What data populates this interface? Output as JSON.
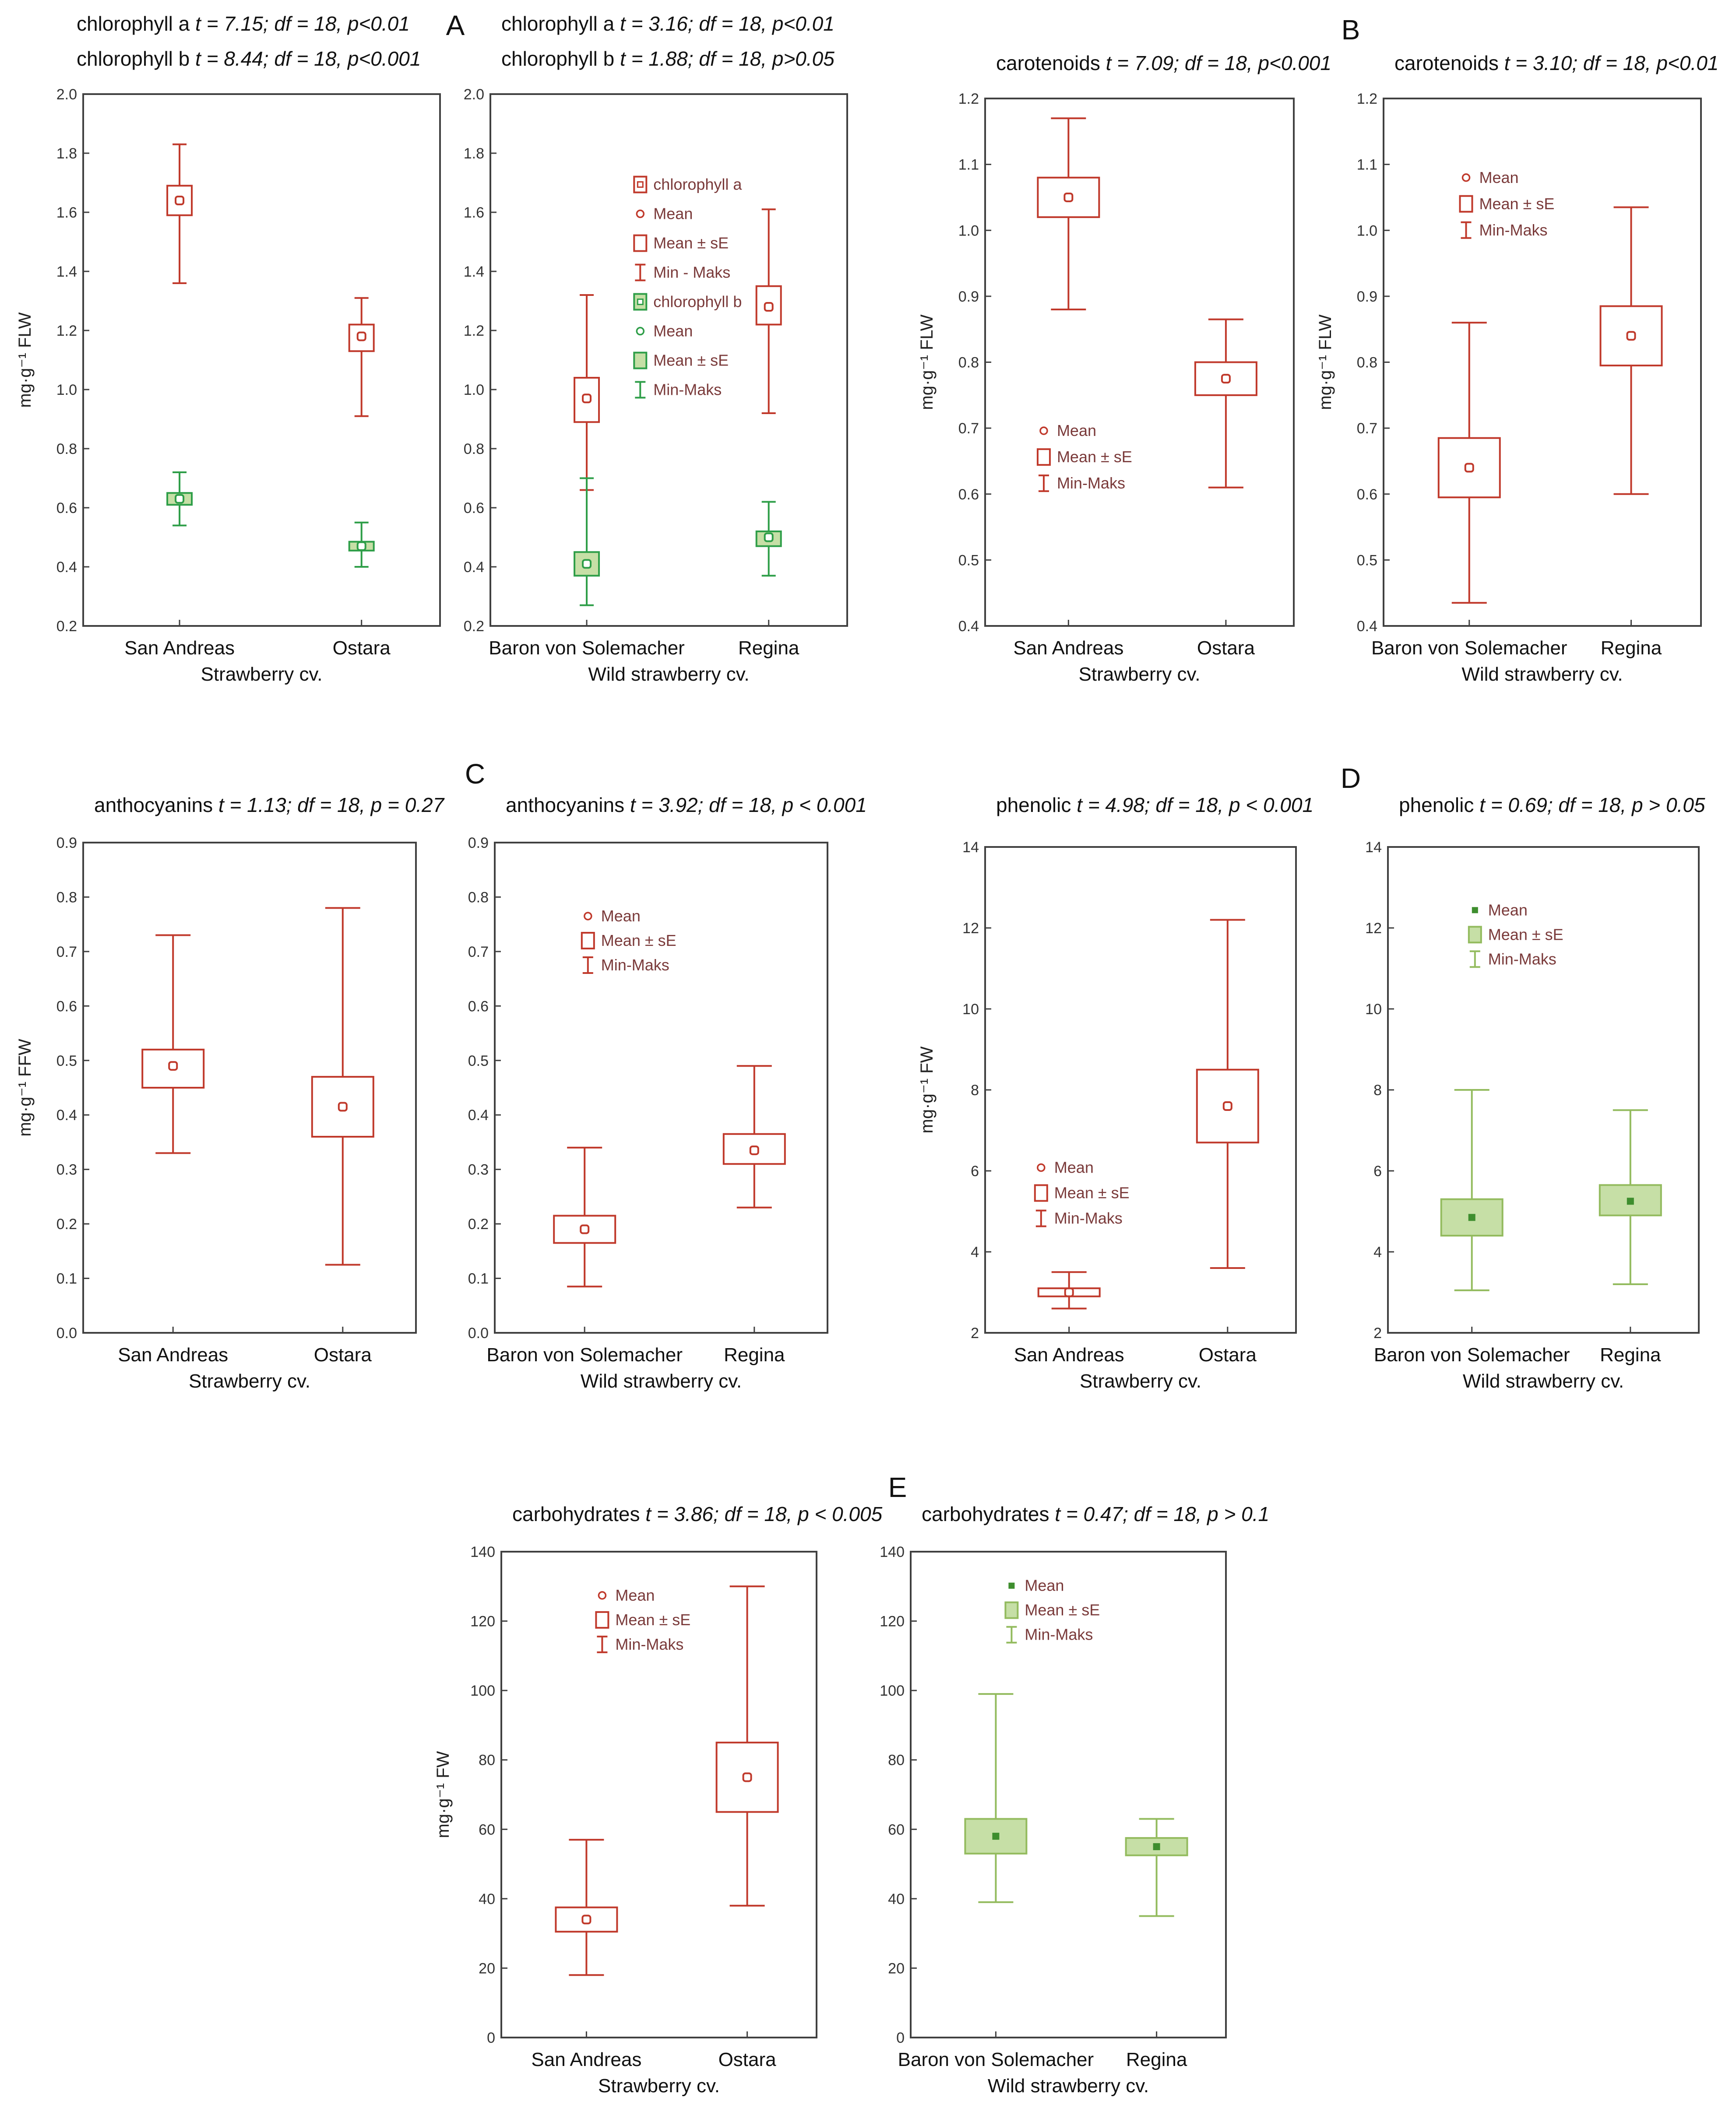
{
  "colors": {
    "red": "#c0392b",
    "dark_green": "#2e9e48",
    "light_green": "#93bb5e",
    "fill_green": "#c6dfa6",
    "frame": "#404040",
    "legend_text": "#7a3a3a"
  },
  "panel_letters": [
    "A",
    "B",
    "C",
    "D",
    "E"
  ],
  "chart_data": [
    {
      "id": "A-left",
      "type": "boxplot",
      "panel": "A",
      "header_lines": [
        {
          "metric": "chlorophyll a",
          "stat": "t = 7.15; df = 18, p<0.01"
        },
        {
          "metric": "chlorophyll b",
          "stat": "t = 8.44; df = 18, p<0.001"
        }
      ],
      "ylabel": "mg·g⁻¹ FLW",
      "xlabel": "Strawberry cv.",
      "categories": [
        "San Andreas",
        "Ostara"
      ],
      "ylim": [
        0.2,
        2.0
      ],
      "yticks": [
        "0.2",
        "0.4",
        "0.6",
        "0.8",
        "1.0",
        "1.2",
        "1.4",
        "1.6",
        "1.8",
        "2.0"
      ],
      "legend": null,
      "series": [
        {
          "name": "chlorophyll a",
          "style": "red",
          "boxes": [
            {
              "category": "San Andreas",
              "mean": 1.64,
              "box_low": 1.59,
              "box_high": 1.69,
              "min": 1.36,
              "max": 1.83
            },
            {
              "category": "Ostara",
              "mean": 1.18,
              "box_low": 1.13,
              "box_high": 1.22,
              "min": 0.91,
              "max": 1.31
            }
          ]
        },
        {
          "name": "chlorophyll b",
          "style": "darkgreen",
          "boxes": [
            {
              "category": "San Andreas",
              "mean": 0.63,
              "box_low": 0.61,
              "box_high": 0.65,
              "min": 0.54,
              "max": 0.72
            },
            {
              "category": "Ostara",
              "mean": 0.47,
              "box_low": 0.455,
              "box_high": 0.485,
              "min": 0.4,
              "max": 0.55
            }
          ]
        }
      ]
    },
    {
      "id": "A-right",
      "type": "boxplot",
      "panel": "A",
      "header_lines": [
        {
          "metric": "chlorophyll a",
          "stat": "t = 3.16; df = 18, p<0.01"
        },
        {
          "metric": "chlorophyll b",
          "stat": "t = 1.88; df = 18, p>0.05"
        }
      ],
      "ylabel": "",
      "xlabel": "Wild strawberry cv.",
      "categories": [
        "Baron von Solemacher",
        "Regina"
      ],
      "ylim": [
        0.2,
        2.0
      ],
      "yticks": [
        "0.2",
        "0.4",
        "0.6",
        "0.8",
        "1.0",
        "1.2",
        "1.4",
        "1.6",
        "1.8",
        "2.0"
      ],
      "legend": {
        "entries": [
          {
            "glyph": "box-dot-red",
            "label": "chlorophyll a"
          },
          {
            "glyph": "dot-red",
            "label": "Mean"
          },
          {
            "glyph": "box-red",
            "label": "Mean ± sE"
          },
          {
            "glyph": "whisker-red",
            "label": "Min - Maks"
          },
          {
            "glyph": "box-dot-darkgreen",
            "label": "chlorophyll b"
          },
          {
            "glyph": "dot-darkgreen",
            "label": "Mean"
          },
          {
            "glyph": "box-darkgreen",
            "label": "Mean ± sE"
          },
          {
            "glyph": "whisker-darkgreen",
            "label": "Min-Maks"
          }
        ]
      },
      "series": [
        {
          "name": "chlorophyll a",
          "style": "red",
          "boxes": [
            {
              "category": "Baron von Solemacher",
              "mean": 0.97,
              "box_low": 0.89,
              "box_high": 1.04,
              "min": 0.66,
              "max": 1.32
            },
            {
              "category": "Regina",
              "mean": 1.28,
              "box_low": 1.22,
              "box_high": 1.35,
              "min": 0.92,
              "max": 1.61
            }
          ]
        },
        {
          "name": "chlorophyll b",
          "style": "darkgreen",
          "boxes": [
            {
              "category": "Baron von Solemacher",
              "mean": 0.41,
              "box_low": 0.37,
              "box_high": 0.45,
              "min": 0.27,
              "max": 0.7
            },
            {
              "category": "Regina",
              "mean": 0.5,
              "box_low": 0.47,
              "box_high": 0.52,
              "min": 0.37,
              "max": 0.62
            }
          ]
        }
      ]
    },
    {
      "id": "B-left",
      "type": "boxplot",
      "panel": "B",
      "header_lines": [
        {
          "metric": "carotenoids",
          "stat": "t = 7.09; df = 18, p<0.001"
        }
      ],
      "ylabel": "mg·g⁻¹ FLW",
      "xlabel": "Strawberry cv.",
      "categories": [
        "San Andreas",
        "Ostara"
      ],
      "ylim": [
        0.4,
        1.2
      ],
      "yticks": [
        "0.4",
        "0.5",
        "0.6",
        "0.7",
        "0.8",
        "0.9",
        "1.0",
        "1.1",
        "1.2"
      ],
      "legend": {
        "entries": [
          {
            "glyph": "dot-red",
            "label": "Mean"
          },
          {
            "glyph": "box-red",
            "label": "Mean ± sE"
          },
          {
            "glyph": "whisker-red",
            "label": "Min-Maks"
          }
        ]
      },
      "series": [
        {
          "name": "carotenoids",
          "style": "red",
          "boxes": [
            {
              "category": "San Andreas",
              "mean": 1.05,
              "box_low": 1.02,
              "box_high": 1.08,
              "min": 0.88,
              "max": 1.17
            },
            {
              "category": "Ostara",
              "mean": 0.775,
              "box_low": 0.75,
              "box_high": 0.8,
              "min": 0.61,
              "max": 0.865
            }
          ]
        }
      ]
    },
    {
      "id": "B-right",
      "type": "boxplot",
      "panel": "B",
      "header_lines": [
        {
          "metric": "carotenoids",
          "stat": "t = 3.10; df = 18, p<0.01"
        }
      ],
      "ylabel": "mg·g⁻¹ FLW",
      "xlabel": "Wild strawberry cv.",
      "categories": [
        "Baron von Solemacher",
        "Regina"
      ],
      "ylim": [
        0.4,
        1.2
      ],
      "yticks": [
        "0.4",
        "0.5",
        "0.6",
        "0.7",
        "0.8",
        "0.9",
        "1.0",
        "1.1",
        "1.2"
      ],
      "legend": {
        "entries": [
          {
            "glyph": "dot-red",
            "label": "Mean"
          },
          {
            "glyph": "box-red",
            "label": "Mean ± sE"
          },
          {
            "glyph": "whisker-red",
            "label": "Min-Maks"
          }
        ]
      },
      "series": [
        {
          "name": "carotenoids",
          "style": "red",
          "boxes": [
            {
              "category": "Baron von Solemacher",
              "mean": 0.64,
              "box_low": 0.595,
              "box_high": 0.685,
              "min": 0.435,
              "max": 0.86
            },
            {
              "category": "Regina",
              "mean": 0.84,
              "box_low": 0.795,
              "box_high": 0.885,
              "min": 0.6,
              "max": 1.035
            }
          ]
        }
      ]
    },
    {
      "id": "C-left",
      "type": "boxplot",
      "panel": "C",
      "header_lines": [
        {
          "metric": "anthocyanins",
          "stat": "t = 1.13; df = 18, p = 0.27"
        }
      ],
      "ylabel": "mg·g⁻¹ FFW",
      "xlabel": "Strawberry cv.",
      "categories": [
        "San Andreas",
        "Ostara"
      ],
      "ylim": [
        0.0,
        0.9
      ],
      "yticks": [
        "0.0",
        "0.1",
        "0.2",
        "0.3",
        "0.4",
        "0.5",
        "0.6",
        "0.7",
        "0.8",
        "0.9"
      ],
      "legend": null,
      "series": [
        {
          "name": "anthocyanins",
          "style": "red",
          "boxes": [
            {
              "category": "San Andreas",
              "mean": 0.49,
              "box_low": 0.45,
              "box_high": 0.52,
              "min": 0.33,
              "max": 0.73
            },
            {
              "category": "Ostara",
              "mean": 0.415,
              "box_low": 0.36,
              "box_high": 0.47,
              "min": 0.125,
              "max": 0.78
            }
          ]
        }
      ]
    },
    {
      "id": "C-right",
      "type": "boxplot",
      "panel": "C",
      "header_lines": [
        {
          "metric": "anthocyanins",
          "stat": "t = 3.92; df = 18, p < 0.001"
        }
      ],
      "ylabel": "",
      "xlabel": "Wild strawberry cv.",
      "categories": [
        "Baron von Solemacher",
        "Regina"
      ],
      "ylim": [
        0.0,
        0.9
      ],
      "yticks": [
        "0.0",
        "0.1",
        "0.2",
        "0.3",
        "0.4",
        "0.5",
        "0.6",
        "0.7",
        "0.8",
        "0.9"
      ],
      "legend": {
        "entries": [
          {
            "glyph": "dot-red",
            "label": "Mean"
          },
          {
            "glyph": "box-red",
            "label": "Mean ± sE"
          },
          {
            "glyph": "whisker-red",
            "label": "Min-Maks"
          }
        ]
      },
      "series": [
        {
          "name": "anthocyanins",
          "style": "red",
          "boxes": [
            {
              "category": "Baron von Solemacher",
              "mean": 0.19,
              "box_low": 0.165,
              "box_high": 0.215,
              "min": 0.085,
              "max": 0.34
            },
            {
              "category": "Regina",
              "mean": 0.335,
              "box_low": 0.31,
              "box_high": 0.365,
              "min": 0.23,
              "max": 0.49
            }
          ]
        }
      ]
    },
    {
      "id": "D-left",
      "type": "boxplot",
      "panel": "D",
      "header_lines": [
        {
          "metric": "phenolic",
          "stat": "t = 4.98; df = 18, p < 0.001"
        }
      ],
      "ylabel": "mg·g⁻¹ FW",
      "xlabel": "Strawberry cv.",
      "categories": [
        "San Andreas",
        "Ostara"
      ],
      "ylim": [
        2,
        14
      ],
      "yticks": [
        "2",
        "4",
        "6",
        "8",
        "10",
        "12",
        "14"
      ],
      "legend": {
        "entries": [
          {
            "glyph": "dot-red",
            "label": "Mean"
          },
          {
            "glyph": "box-red",
            "label": "Mean ± sE"
          },
          {
            "glyph": "whisker-red",
            "label": "Min-Maks"
          }
        ]
      },
      "series": [
        {
          "name": "phenolic",
          "style": "red",
          "boxes": [
            {
              "category": "San Andreas",
              "mean": 3.0,
              "box_low": 2.9,
              "box_high": 3.1,
              "min": 2.6,
              "max": 3.5
            },
            {
              "category": "Ostara",
              "mean": 7.6,
              "box_low": 6.7,
              "box_high": 8.5,
              "min": 3.6,
              "max": 12.2
            }
          ]
        }
      ]
    },
    {
      "id": "D-right",
      "type": "boxplot",
      "panel": "D",
      "header_lines": [
        {
          "metric": "phenolic",
          "stat": "t = 0.69; df = 18, p > 0.05"
        }
      ],
      "ylabel": "",
      "xlabel": "Wild strawberry cv.",
      "categories": [
        "Baron von Solemacher",
        "Regina"
      ],
      "ylim": [
        2,
        14
      ],
      "yticks": [
        "2",
        "4",
        "6",
        "8",
        "10",
        "12",
        "14"
      ],
      "legend": {
        "entries": [
          {
            "glyph": "dot-green",
            "label": "Mean"
          },
          {
            "glyph": "box-green",
            "label": "Mean ± sE"
          },
          {
            "glyph": "whisker-green",
            "label": "Min-Maks"
          }
        ]
      },
      "series": [
        {
          "name": "phenolic",
          "style": "green",
          "boxes": [
            {
              "category": "Baron von Solemacher",
              "mean": 4.85,
              "box_low": 4.4,
              "box_high": 5.3,
              "min": 3.05,
              "max": 8.0
            },
            {
              "category": "Regina",
              "mean": 5.25,
              "box_low": 4.9,
              "box_high": 5.65,
              "min": 3.2,
              "max": 7.5
            }
          ]
        }
      ]
    },
    {
      "id": "E-left",
      "type": "boxplot",
      "panel": "E",
      "header_lines": [
        {
          "metric": "carbohydrates",
          "stat": "t = 3.86; df = 18, p < 0.005"
        }
      ],
      "ylabel": "mg·g⁻¹ FW",
      "xlabel": "Strawberry cv.",
      "categories": [
        "San Andreas",
        "Ostara"
      ],
      "ylim": [
        0,
        140
      ],
      "yticks": [
        "0",
        "20",
        "40",
        "60",
        "80",
        "100",
        "120",
        "140"
      ],
      "legend": {
        "entries": [
          {
            "glyph": "dot-red",
            "label": "Mean"
          },
          {
            "glyph": "box-red",
            "label": "Mean ± sE"
          },
          {
            "glyph": "whisker-red",
            "label": "Min-Maks"
          }
        ]
      },
      "series": [
        {
          "name": "carbohydrates",
          "style": "red",
          "boxes": [
            {
              "category": "San Andreas",
              "mean": 34,
              "box_low": 30.5,
              "box_high": 37.5,
              "min": 18,
              "max": 57
            },
            {
              "category": "Ostara",
              "mean": 75,
              "box_low": 65,
              "box_high": 85,
              "min": 38,
              "max": 130
            }
          ]
        }
      ]
    },
    {
      "id": "E-right",
      "type": "boxplot",
      "panel": "E",
      "header_lines": [
        {
          "metric": "carbohydrates",
          "stat": "t = 0.47; df = 18, p > 0.1"
        }
      ],
      "ylabel": "",
      "xlabel": "Wild strawberry cv.",
      "categories": [
        "Baron von Solemacher",
        "Regina"
      ],
      "ylim": [
        0,
        140
      ],
      "yticks": [
        "0",
        "20",
        "40",
        "60",
        "80",
        "100",
        "120",
        "140"
      ],
      "legend": {
        "entries": [
          {
            "glyph": "dot-green",
            "label": "Mean"
          },
          {
            "glyph": "box-green",
            "label": "Mean ± sE"
          },
          {
            "glyph": "whisker-green",
            "label": "Min-Maks"
          }
        ]
      },
      "series": [
        {
          "name": "carbohydrates",
          "style": "green",
          "boxes": [
            {
              "category": "Baron von Solemacher",
              "mean": 58,
              "box_low": 53,
              "box_high": 63,
              "min": 39,
              "max": 99
            },
            {
              "category": "Regina",
              "mean": 55,
              "box_low": 52.5,
              "box_high": 57.5,
              "min": 35,
              "max": 63
            }
          ]
        }
      ]
    }
  ]
}
